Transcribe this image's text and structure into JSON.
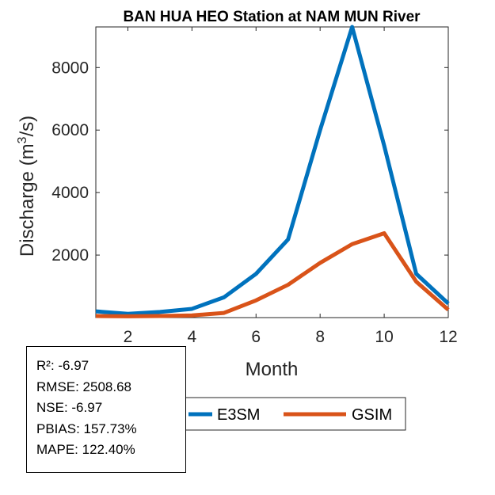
{
  "chart_data": {
    "type": "line",
    "title": "BAN HUA HEO  Station at  NAM MUN  River",
    "xlabel": "Month",
    "ylabel_main": "Discharge (m",
    "ylabel_sup": "3",
    "ylabel_end": "/s)",
    "x": [
      1,
      2,
      3,
      4,
      5,
      6,
      7,
      8,
      9,
      10,
      11,
      12
    ],
    "xlim": [
      1,
      12
    ],
    "ylim": [
      0,
      9300
    ],
    "xticks": [
      2,
      4,
      6,
      8,
      10,
      12
    ],
    "yticks": [
      2000,
      4000,
      6000,
      8000
    ],
    "grid": false,
    "legend_position": "bottom",
    "series": [
      {
        "name": "E3SM",
        "color": "#0072BD",
        "values": [
          200,
          120,
          180,
          280,
          650,
          1400,
          2500,
          6000,
          9300,
          5500,
          1400,
          450
        ]
      },
      {
        "name": "GSIM",
        "color": "#D95319",
        "values": [
          50,
          40,
          50,
          70,
          150,
          550,
          1050,
          1750,
          2350,
          2700,
          1150,
          250
        ]
      }
    ]
  },
  "stats": {
    "r2": "R²: -6.97",
    "rmse": "RMSE: 2508.68",
    "nse": "NSE: -6.97",
    "pbias": "PBIAS: 157.73%",
    "mape": "MAPE: 122.40%"
  }
}
